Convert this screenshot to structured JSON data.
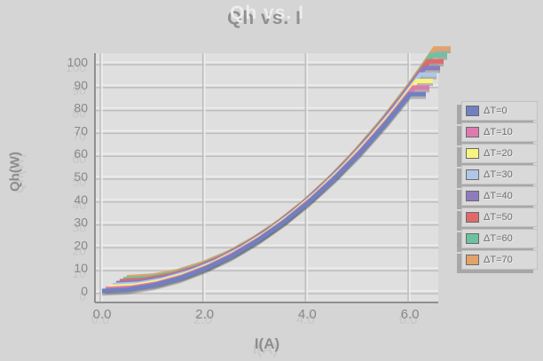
{
  "chart_data": {
    "type": "line",
    "title": "Qh vs. I",
    "xlabel": "I(A)",
    "ylabel": "Qh(W)",
    "xlim": [
      0,
      6.5
    ],
    "ylim": [
      0,
      100
    ],
    "grid": true,
    "legend_position": "right",
    "x_tick_labels": [
      "0.0",
      "2.0",
      "4.0",
      "6.0"
    ],
    "x_tick_values": [
      0,
      2,
      4,
      6
    ],
    "y_tick_values": [
      0,
      10,
      20,
      30,
      40,
      50,
      60,
      70,
      80,
      90,
      100
    ],
    "x": [
      0,
      0.5,
      1,
      1.5,
      2,
      2.5,
      3,
      3.5,
      4,
      4.5,
      5,
      5.5,
      6
    ],
    "series": [
      {
        "name": "ΔT=0",
        "color": "#7080c0",
        "values": [
          0,
          0.6,
          2.4,
          5.4,
          9.6,
          14.9,
          21.5,
          29.3,
          38.2,
          48.4,
          59.7,
          72.3,
          86
        ]
      },
      {
        "name": "ΔT=10",
        "color": "#dd7ab0",
        "values": [
          0,
          0.6,
          2.4,
          5.5,
          9.8,
          15.3,
          22.0,
          29.9,
          39.1,
          49.5,
          61.1,
          73.9,
          88
        ]
      },
      {
        "name": "ΔT=20",
        "color": "#f8f47e",
        "values": [
          0,
          0.6,
          2.5,
          5.6,
          10.0,
          15.6,
          22.5,
          30.6,
          40.0,
          50.6,
          62.5,
          75.6,
          90
        ]
      },
      {
        "name": "ΔT=30",
        "color": "#aec6e8",
        "values": [
          0,
          0.6,
          2.6,
          5.8,
          10.2,
          16.0,
          23.0,
          31.3,
          40.9,
          51.8,
          63.9,
          77.3,
          92
        ]
      },
      {
        "name": "ΔT=40",
        "color": "#8d7bbe",
        "values": [
          0,
          0.7,
          2.6,
          5.9,
          10.4,
          16.3,
          23.5,
          32.0,
          41.8,
          52.9,
          65.3,
          79.0,
          94
        ]
      },
      {
        "name": "ΔT=50",
        "color": "#e06a6a",
        "values": [
          0,
          0.7,
          2.7,
          6.0,
          10.7,
          16.7,
          24.0,
          32.7,
          42.7,
          54.0,
          66.7,
          80.7,
          96
        ]
      },
      {
        "name": "ΔT=60",
        "color": "#6cc29e",
        "values": [
          0,
          0.7,
          2.7,
          6.1,
          10.9,
          17.0,
          24.5,
          33.3,
          43.6,
          55.1,
          68.1,
          82.3,
          98
        ]
      },
      {
        "name": "ΔT=70",
        "color": "#e2a269",
        "values": [
          0,
          0.7,
          2.8,
          6.3,
          11.1,
          17.4,
          25.0,
          34.0,
          44.4,
          56.3,
          69.4,
          84.0,
          100
        ]
      }
    ]
  }
}
